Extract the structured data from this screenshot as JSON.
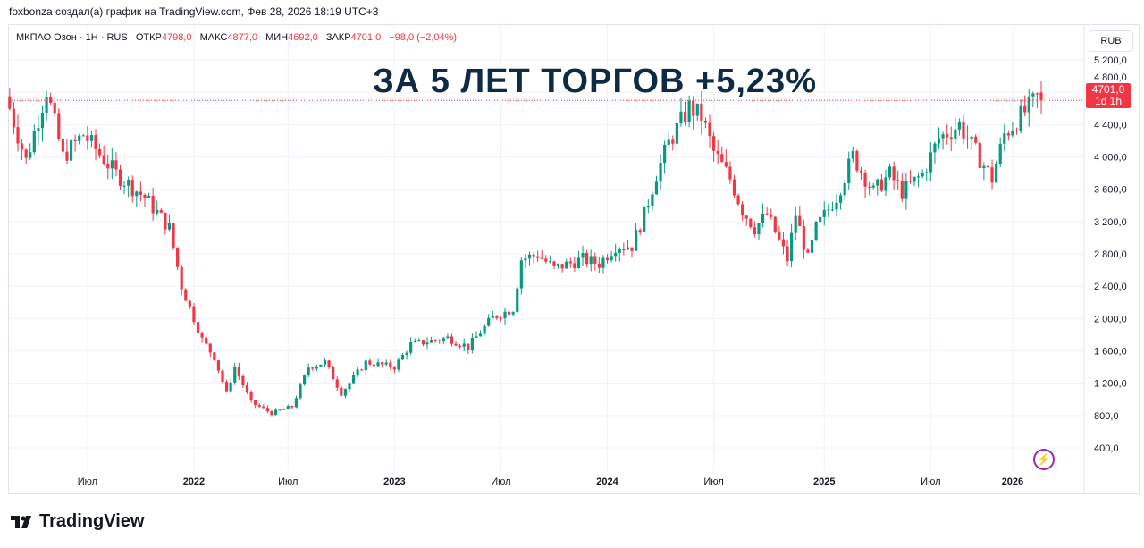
{
  "caption": "foxbonza создал(а) график на TradingView.com, Фев 28, 2026 18:19 UTC+3",
  "legend": {
    "symbol": "МКПАО Озон · 1H · RUS",
    "open_label": "ОТКР",
    "open": "4798,0",
    "high_label": "МАКС",
    "high": "4877,0",
    "low_label": "МИН",
    "low": "4692,0",
    "close_label": "ЗАКР",
    "close": "4701,0",
    "change": "−98,0 (−2,04%)"
  },
  "currency": "RUB",
  "overlay_title": "ЗА 5 ЛЕТ ТОРГОВ +5,23%",
  "last_price_badge": {
    "price": "4701,0",
    "countdown": "1d 1h"
  },
  "brand": "TradingView",
  "colors": {
    "up": "#089981",
    "down": "#f23645",
    "title": "#0f2a44"
  },
  "chart_data": {
    "type": "candlestick",
    "title": "МКПАО Озон",
    "ylim": [
      0,
      5400
    ],
    "y_ticks": [
      {
        "v": 400,
        "l": "400,0"
      },
      {
        "v": 800,
        "l": "800,0"
      },
      {
        "v": 1200,
        "l": "1 200,0"
      },
      {
        "v": 1600,
        "l": "1 600,0"
      },
      {
        "v": 2000,
        "l": "2 000,0"
      },
      {
        "v": 2400,
        "l": "2 400,0"
      },
      {
        "v": 2800,
        "l": "2 800,0"
      },
      {
        "v": 3200,
        "l": "3 200,0"
      },
      {
        "v": 3600,
        "l": "3 600,0"
      },
      {
        "v": 4000,
        "l": "4 000,0"
      },
      {
        "v": 4400,
        "l": "4 400,0"
      },
      {
        "v": 4800,
        "l": "4 800,0"
      },
      {
        "v": 5200,
        "l": "5 200,0"
      }
    ],
    "x_ticks": [
      {
        "w": 17,
        "l": "Июл",
        "b": false
      },
      {
        "w": 43,
        "l": "2022",
        "b": true
      },
      {
        "w": 66,
        "l": "Июл",
        "b": false
      },
      {
        "w": 92,
        "l": "2023",
        "b": true
      },
      {
        "w": 118,
        "l": "Июл",
        "b": false
      },
      {
        "w": 144,
        "l": "2024",
        "b": true
      },
      {
        "w": 170,
        "l": "Июл",
        "b": false
      },
      {
        "w": 197,
        "l": "2025",
        "b": true
      },
      {
        "w": 223,
        "l": "Июл",
        "b": false
      },
      {
        "w": 243,
        "l": "2026",
        "b": true
      }
    ],
    "last_price": 4701,
    "close_anchors_week_price": [
      [
        -2,
        4600
      ],
      [
        2,
        3950
      ],
      [
        7,
        4830
      ],
      [
        11,
        4000
      ],
      [
        16,
        4280
      ],
      [
        24,
        3790
      ],
      [
        31,
        3500
      ],
      [
        37,
        3120
      ],
      [
        40,
        2400
      ],
      [
        45,
        1740
      ],
      [
        48,
        1520
      ],
      [
        51,
        1075
      ],
      [
        53,
        1400
      ],
      [
        57,
        960
      ],
      [
        62,
        830
      ],
      [
        67,
        910
      ],
      [
        71,
        1400
      ],
      [
        75,
        1460
      ],
      [
        79,
        1075
      ],
      [
        85,
        1460
      ],
      [
        92,
        1400
      ],
      [
        96,
        1680
      ],
      [
        105,
        1760
      ],
      [
        110,
        1650
      ],
      [
        116,
        2015
      ],
      [
        121,
        2125
      ],
      [
        123,
        2735
      ],
      [
        127,
        2790
      ],
      [
        131,
        2620
      ],
      [
        138,
        2735
      ],
      [
        142,
        2680
      ],
      [
        146,
        2900
      ],
      [
        150,
        2900
      ],
      [
        153,
        3290
      ],
      [
        156,
        3785
      ],
      [
        159,
        4170
      ],
      [
        164,
        4615
      ],
      [
        167,
        4500
      ],
      [
        170,
        4060
      ],
      [
        174,
        3730
      ],
      [
        177,
        3340
      ],
      [
        180,
        3120
      ],
      [
        183,
        3290
      ],
      [
        188,
        2735
      ],
      [
        190,
        3290
      ],
      [
        193,
        2735
      ],
      [
        195,
        3120
      ],
      [
        200,
        3510
      ],
      [
        204,
        4010
      ],
      [
        209,
        3565
      ],
      [
        213,
        3785
      ],
      [
        216,
        3565
      ],
      [
        221,
        3785
      ],
      [
        225,
        4230
      ],
      [
        230,
        4400
      ],
      [
        234,
        4060
      ],
      [
        238,
        3730
      ],
      [
        241,
        4280
      ],
      [
        246,
        4560
      ],
      [
        249,
        4725
      ],
      [
        250,
        4701
      ]
    ]
  }
}
